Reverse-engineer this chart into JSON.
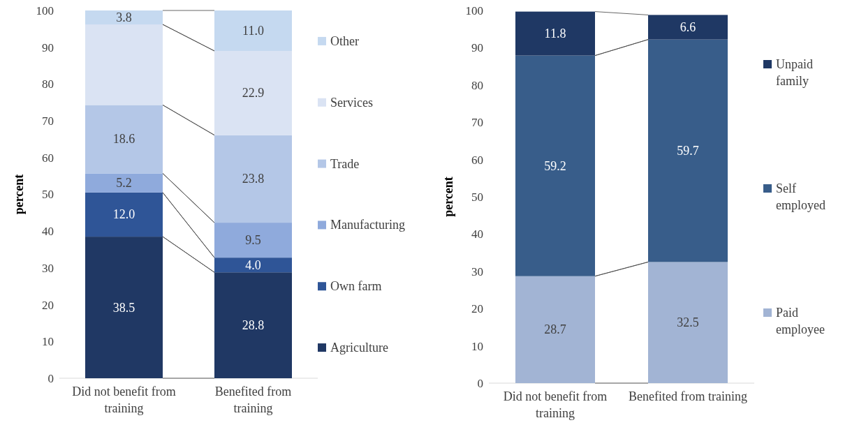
{
  "chart_data": [
    {
      "type": "bar",
      "stacked": true,
      "ylabel": "percent",
      "categories": [
        "Did not benefit from training",
        "Benefited from training"
      ],
      "ylim": [
        0,
        100
      ],
      "yticks": [
        0,
        10,
        20,
        30,
        40,
        50,
        60,
        70,
        80,
        90,
        100
      ],
      "legend": "right",
      "grid": false,
      "series": [
        {
          "name": "Agriculture",
          "color": "#203864",
          "values": [
            38.5,
            28.8
          ],
          "value_labels": [
            "38.5",
            "28.8"
          ]
        },
        {
          "name": "Own farm",
          "color": "#2f5597",
          "values": [
            12.0,
            4.0
          ],
          "value_labels": [
            "12.0",
            "4.0"
          ]
        },
        {
          "name": "Manufacturing",
          "color": "#8faadc",
          "values": [
            5.2,
            9.5
          ],
          "value_labels": [
            "5.2",
            "9.5"
          ]
        },
        {
          "name": "Trade",
          "color": "#b4c7e7",
          "values": [
            18.6,
            23.8
          ],
          "value_labels": [
            "18.6",
            "23.8"
          ]
        },
        {
          "name": "Services",
          "color": "#dae3f3",
          "values": [
            21.9,
            22.9
          ],
          "value_labels": [
            null,
            "22.9"
          ]
        },
        {
          "name": "Other",
          "color": "#c5d9f0",
          "values": [
            3.8,
            11.0
          ],
          "value_labels": [
            "3.8",
            "11.0"
          ]
        }
      ]
    },
    {
      "type": "bar",
      "stacked": true,
      "ylabel": "percent",
      "categories": [
        "Did not benefit from training",
        "Benefited from training"
      ],
      "ylim": [
        0,
        100
      ],
      "yticks": [
        0,
        10,
        20,
        30,
        40,
        50,
        60,
        70,
        80,
        90,
        100
      ],
      "legend": "right",
      "grid": false,
      "series": [
        {
          "name": "Paid employee",
          "color": "#a2b4d4",
          "values": [
            28.7,
            32.5
          ],
          "value_labels": [
            "28.7",
            "32.5"
          ]
        },
        {
          "name": "Self employed",
          "color": "#385d8a",
          "values": [
            59.2,
            59.7
          ],
          "value_labels": [
            "59.2",
            "59.7"
          ]
        },
        {
          "name": "Unpaid family",
          "color": "#1f3864",
          "values": [
            11.8,
            6.6
          ],
          "value_labels": [
            "11.8",
            "6.6"
          ]
        }
      ]
    }
  ]
}
